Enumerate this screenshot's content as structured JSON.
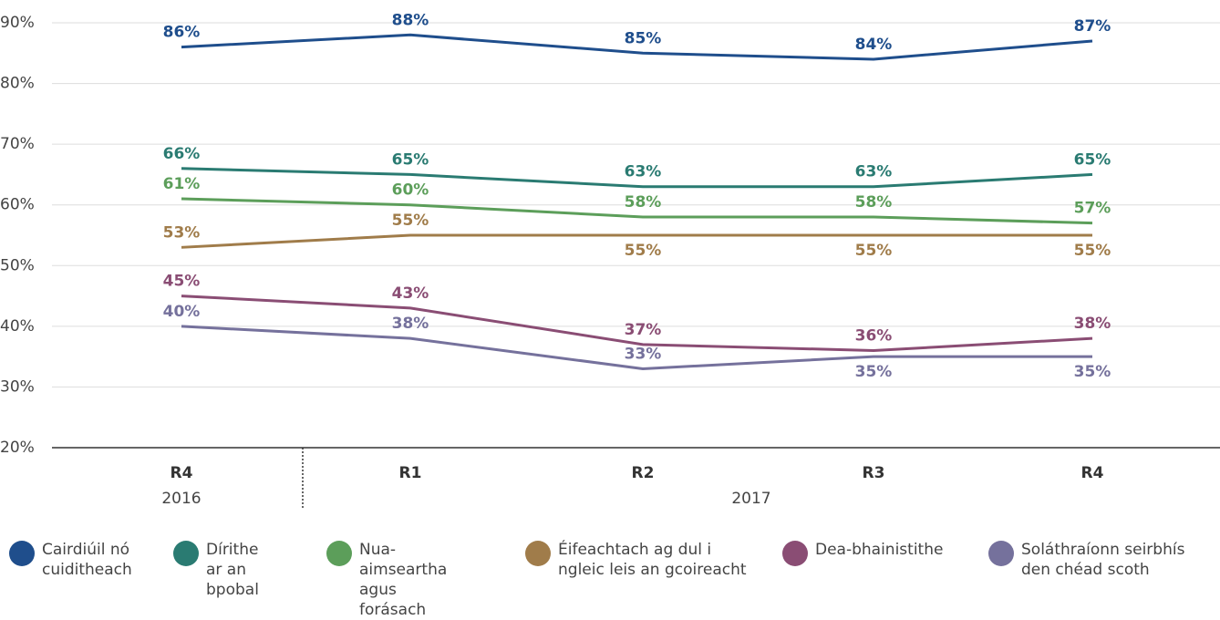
{
  "chart_data": {
    "type": "line",
    "categories": [
      "R4",
      "R1",
      "R2",
      "R3",
      "R4"
    ],
    "x_groups": [
      {
        "label": "2016",
        "span": 1
      },
      {
        "label": "2017",
        "span": 4
      }
    ],
    "ylim": [
      20,
      90
    ],
    "yticks": [
      {
        "value": 20,
        "label": "20%"
      },
      {
        "value": 30,
        "label": "30%"
      },
      {
        "value": 40,
        "label": "40%"
      },
      {
        "value": 50,
        "label": "50%"
      },
      {
        "value": 60,
        "label": "60%"
      },
      {
        "value": 70,
        "label": "70%"
      },
      {
        "value": 80,
        "label": "80%"
      },
      {
        "value": 90,
        "label": "90%"
      }
    ],
    "grid": true,
    "legend": "bottom",
    "series": [
      {
        "name": "Cairdiúil nó cuiditheach",
        "color": "#1f4e8c",
        "values": [
          86,
          88,
          85,
          84,
          87
        ],
        "value_labels": [
          "86%",
          "88%",
          "85%",
          "84%",
          "87%"
        ]
      },
      {
        "name": "Dírithe ar an bpobal",
        "color": "#2a7b72",
        "values": [
          66,
          65,
          63,
          63,
          65
        ],
        "value_labels": [
          "66%",
          "65%",
          "63%",
          "63%",
          "65%"
        ]
      },
      {
        "name": "Nua-aimseartha agus forásach",
        "color": "#5c9e5a",
        "values": [
          61,
          60,
          58,
          58,
          57
        ],
        "value_labels": [
          "61%",
          "60%",
          "58%",
          "58%",
          "57%"
        ]
      },
      {
        "name": "Éifeachtach ag dul i ngleic leis an gcoireacht",
        "color": "#a07c4a",
        "values": [
          53,
          55,
          55,
          55,
          55
        ],
        "value_labels": [
          "53%",
          "55%",
          "55%",
          "55%",
          "55%"
        ]
      },
      {
        "name": "Dea-bhainistithe",
        "color": "#8a4d74",
        "values": [
          45,
          43,
          37,
          36,
          38
        ],
        "value_labels": [
          "45%",
          "43%",
          "37%",
          "36%",
          "38%"
        ]
      },
      {
        "name": "Soláthraíonn seirbhís den chéad scoth",
        "color": "#75719c",
        "values": [
          40,
          38,
          33,
          35,
          35
        ],
        "value_labels": [
          "40%",
          "38%",
          "33%",
          "35%",
          "35%"
        ]
      }
    ]
  }
}
